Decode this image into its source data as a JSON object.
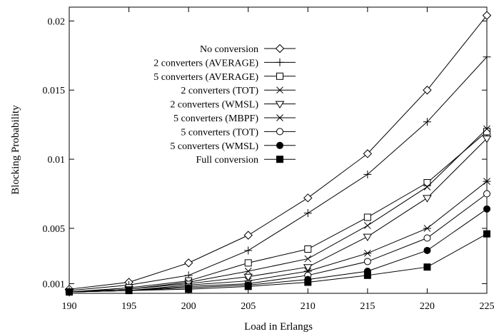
{
  "chart_data": {
    "type": "line",
    "title": "",
    "xlabel": "Load in Erlangs",
    "ylabel": "Blocking Probability",
    "xlim": [
      190,
      225
    ],
    "ylim": [
      0.0003,
      0.021
    ],
    "x_ticks": [
      "190",
      "195",
      "200",
      "205",
      "210",
      "215",
      "220",
      "225"
    ],
    "y_ticks": [
      "0.001",
      "0.005",
      "0.01",
      "0.015",
      "0.02"
    ],
    "x_tick_values": [
      190,
      195,
      200,
      205,
      210,
      215,
      220,
      225
    ],
    "y_tick_values": [
      0.001,
      0.005,
      0.01,
      0.015,
      0.02
    ],
    "grid": false,
    "legend_position": "top-left",
    "x": [
      190,
      195,
      200,
      205,
      210,
      215,
      220,
      225
    ],
    "series": [
      {
        "name": "No conversion",
        "marker": "diamond",
        "values": [
          0.0006,
          0.0011,
          0.0025,
          0.0045,
          0.0072,
          0.0104,
          0.015,
          0.0204
        ]
      },
      {
        "name": "2 converters (AVERAGE)",
        "marker": "plus",
        "values": [
          0.0005,
          0.0009,
          0.0016,
          0.0034,
          0.0061,
          0.0089,
          0.0127,
          0.0174
        ]
      },
      {
        "name": "5 converters (AVERAGE)",
        "marker": "square",
        "values": [
          0.0004,
          0.0007,
          0.0012,
          0.0025,
          0.0035,
          0.0058,
          0.0083,
          0.012
        ]
      },
      {
        "name": "2 converters (TOT)",
        "marker": "x",
        "values": [
          0.0004,
          0.0006,
          0.0011,
          0.0019,
          0.0028,
          0.0052,
          0.008,
          0.0122
        ]
      },
      {
        "name": "2 converters (WMSL)",
        "marker": "triangle-down",
        "values": [
          0.0004,
          0.0006,
          0.001,
          0.0015,
          0.0022,
          0.0044,
          0.0072,
          0.0115
        ]
      },
      {
        "name": "5 converters (MBPF)",
        "marker": "asterisk",
        "values": [
          0.0004,
          0.0005,
          0.0009,
          0.0012,
          0.0019,
          0.0032,
          0.005,
          0.0084
        ]
      },
      {
        "name": "5 converters (TOT)",
        "marker": "circle",
        "values": [
          0.0004,
          0.0005,
          0.0008,
          0.001,
          0.0016,
          0.0026,
          0.0043,
          0.0075
        ]
      },
      {
        "name": "5 converters (WMSL)",
        "marker": "filled-circle",
        "values": [
          0.0004,
          0.0005,
          0.0007,
          0.0009,
          0.0013,
          0.0019,
          0.0034,
          0.0064
        ]
      },
      {
        "name": "Full conversion",
        "marker": "filled-square",
        "values": [
          0.0004,
          0.0005,
          0.0006,
          0.0008,
          0.0011,
          0.0016,
          0.0022,
          0.0046
        ]
      }
    ]
  }
}
